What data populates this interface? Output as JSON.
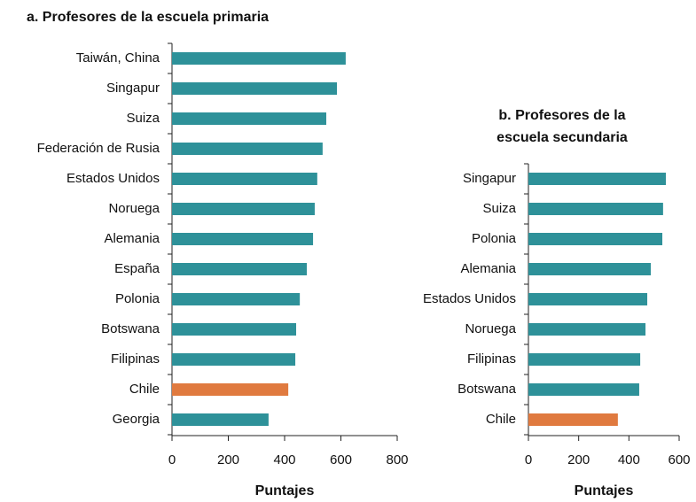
{
  "chart_data": [
    {
      "type": "barh",
      "title": [
        "a. Profesores de la escuela primaria"
      ],
      "xlabel": "Puntajes",
      "categories": [
        "Taiwán, China",
        "Singapur",
        "Suiza",
        "Federación de Rusia",
        "Estados Unidos",
        "Noruega",
        "Alemania",
        "España",
        "Polonia",
        "Botswana",
        "Filipinas",
        "Chile",
        "Georgia"
      ],
      "values": [
        617,
        586,
        548,
        535,
        516,
        507,
        501,
        479,
        454,
        441,
        438,
        413,
        343
      ],
      "colors": [
        "#2e9199",
        "#2e9199",
        "#2e9199",
        "#2e9199",
        "#2e9199",
        "#2e9199",
        "#2e9199",
        "#2e9199",
        "#2e9199",
        "#2e9199",
        "#2e9199",
        "#e07a3f",
        "#2e9199"
      ],
      "xlim": [
        0,
        800
      ],
      "xticks": [
        0,
        200,
        400,
        600,
        800
      ]
    },
    {
      "type": "barh",
      "title": [
        "b. Profesores de la",
        "escuela secundaria"
      ],
      "xlabel": "Puntajes",
      "categories": [
        "Singapur",
        "Suiza",
        "Polonia",
        "Alemania",
        "Estados Unidos",
        "Noruega",
        "Filipinas",
        "Botswana",
        "Chile"
      ],
      "values": [
        547,
        536,
        533,
        487,
        473,
        466,
        445,
        441,
        356
      ],
      "colors": [
        "#2e9199",
        "#2e9199",
        "#2e9199",
        "#2e9199",
        "#2e9199",
        "#2e9199",
        "#2e9199",
        "#2e9199",
        "#e07a3f"
      ],
      "xlim": [
        0,
        600
      ],
      "xticks": [
        0,
        200,
        400,
        600
      ]
    }
  ]
}
